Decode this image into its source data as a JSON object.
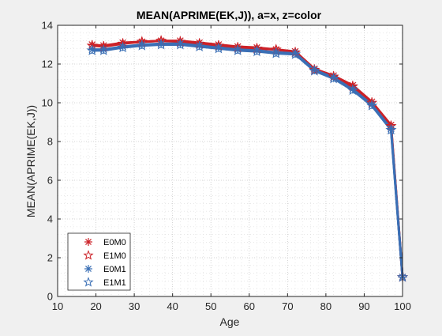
{
  "chart_data": {
    "type": "line",
    "title": "MEAN(APRIME(EK,J)), a=x, z=color",
    "xlabel": "Age",
    "ylabel": "MEAN(APRIME(EK,J))",
    "xlim": [
      10,
      100
    ],
    "ylim": [
      0,
      14
    ],
    "xticks": [
      "10",
      "20",
      "30",
      "40",
      "50",
      "60",
      "70",
      "80",
      "90",
      "100"
    ],
    "yticks": [
      "0",
      "2",
      "4",
      "6",
      "8",
      "10",
      "12",
      "14"
    ],
    "grid": "major-and-minor-dotted",
    "legend_location": "bottom-left",
    "x": [
      19,
      22,
      27,
      32,
      37,
      42,
      47,
      52,
      57,
      62,
      67,
      72,
      77,
      82,
      87,
      92,
      97,
      100
    ],
    "series": [
      {
        "name": "E0M0",
        "marker": "asterisk",
        "color": "#cc2127",
        "values": [
          13.0,
          12.95,
          13.1,
          13.15,
          13.2,
          13.2,
          13.1,
          13.0,
          12.9,
          12.85,
          12.75,
          12.65,
          11.75,
          11.4,
          10.9,
          10.05,
          8.85,
          1.0
        ]
      },
      {
        "name": "E1M0",
        "marker": "star",
        "color": "#cc2127",
        "values": [
          12.95,
          12.9,
          13.05,
          13.15,
          13.2,
          13.15,
          13.05,
          12.95,
          12.85,
          12.8,
          12.75,
          12.6,
          11.7,
          11.35,
          10.85,
          10.0,
          8.8,
          1.0
        ]
      },
      {
        "name": "E0M1",
        "marker": "asterisk",
        "color": "#3a6fb5",
        "values": [
          12.75,
          12.75,
          12.9,
          13.0,
          13.05,
          13.05,
          12.95,
          12.85,
          12.75,
          12.7,
          12.6,
          12.55,
          11.7,
          11.3,
          10.7,
          9.9,
          8.65,
          1.0
        ]
      },
      {
        "name": "E1M1",
        "marker": "star",
        "color": "#3a6fb5",
        "values": [
          12.7,
          12.7,
          12.85,
          12.95,
          13.0,
          13.0,
          12.9,
          12.8,
          12.7,
          12.65,
          12.55,
          12.5,
          11.65,
          11.25,
          10.65,
          9.85,
          8.6,
          1.0
        ]
      }
    ]
  }
}
